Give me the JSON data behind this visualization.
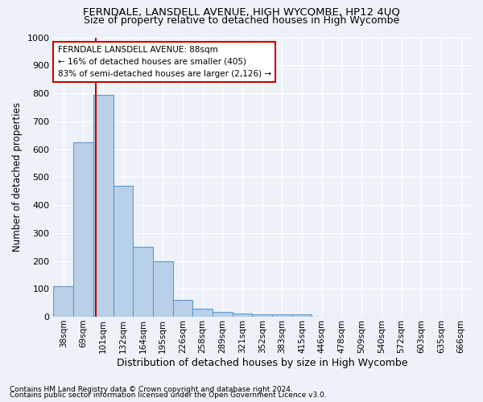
{
  "title": "FERNDALE, LANSDELL AVENUE, HIGH WYCOMBE, HP12 4UQ",
  "subtitle": "Size of property relative to detached houses in High Wycombe",
  "xlabel": "Distribution of detached houses by size in High Wycombe",
  "ylabel": "Number of detached properties",
  "categories": [
    "38sqm",
    "69sqm",
    "101sqm",
    "132sqm",
    "164sqm",
    "195sqm",
    "226sqm",
    "258sqm",
    "289sqm",
    "321sqm",
    "352sqm",
    "383sqm",
    "415sqm",
    "446sqm",
    "478sqm",
    "509sqm",
    "540sqm",
    "572sqm",
    "603sqm",
    "635sqm",
    "666sqm"
  ],
  "values": [
    110,
    625,
    795,
    470,
    250,
    200,
    60,
    28,
    18,
    13,
    10,
    10,
    10,
    0,
    0,
    0,
    0,
    0,
    0,
    0,
    0
  ],
  "bar_color": "#b8d0e8",
  "bar_edge_color": "#5b9bd5",
  "annotation_text": "FERNDALE LANSDELL AVENUE: 88sqm\n← 16% of detached houses are smaller (405)\n83% of semi-detached houses are larger (2,126) →",
  "annotation_box_color": "#ffffff",
  "annotation_box_edge": "#cc0000",
  "vline_color": "#cc0000",
  "vline_x": 1.62,
  "ylim": [
    0,
    1000
  ],
  "yticks": [
    0,
    100,
    200,
    300,
    400,
    500,
    600,
    700,
    800,
    900,
    1000
  ],
  "footnote1": "Contains HM Land Registry data © Crown copyright and database right 2024.",
  "footnote2": "Contains public sector information licensed under the Open Government Licence v3.0.",
  "background_color": "#eef2f8",
  "grid_color": "#ffffff",
  "title_fontsize": 9.5,
  "subtitle_fontsize": 9.0,
  "ylabel_fontsize": 8.5,
  "xlabel_fontsize": 9.0,
  "tick_fontsize": 7.5,
  "ytick_fontsize": 8.0,
  "footnote_fontsize": 6.5,
  "annot_fontsize": 7.5
}
